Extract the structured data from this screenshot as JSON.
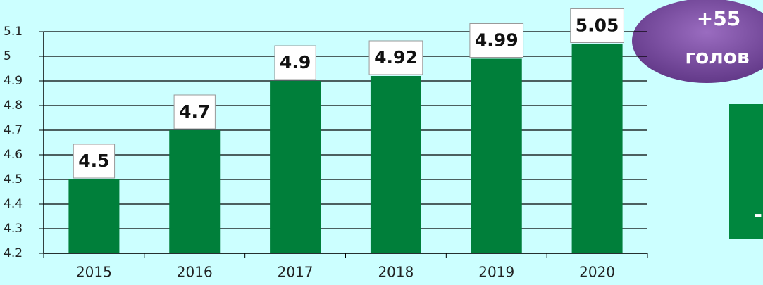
{
  "chart_data": {
    "type": "bar",
    "categories": [
      "2015",
      "2016",
      "2017",
      "2018",
      "2019",
      "2020"
    ],
    "values": [
      4.5,
      4.7,
      4.9,
      4.92,
      4.99,
      5.05
    ],
    "color": "#007f3a",
    "ylim": [
      4.2,
      5.1
    ],
    "yticks": [
      4.2,
      4.3,
      4.4,
      4.5,
      4.6,
      4.7,
      4.8,
      4.9,
      5,
      5.1
    ],
    "grid": true,
    "annotations": [
      "+55",
      "голов",
      "-"
    ]
  }
}
